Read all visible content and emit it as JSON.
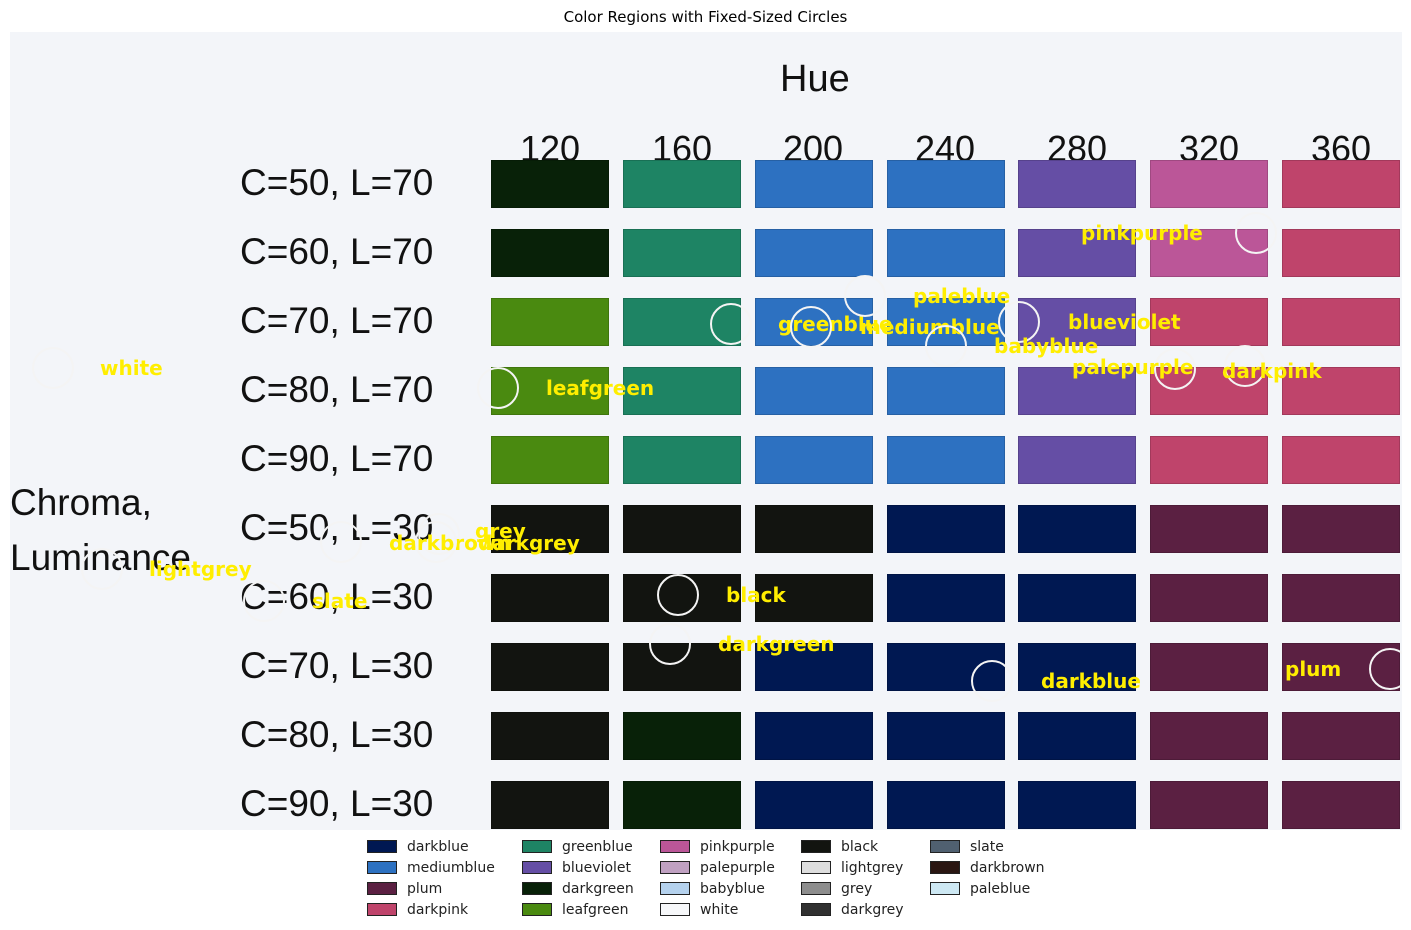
{
  "figure": {
    "title": "Color Regions with Fixed-Sized Circles"
  },
  "image_text": {
    "hue_title": "Hue",
    "hue_labels": [
      "120",
      "160",
      "200",
      "240",
      "280",
      "320",
      "360"
    ],
    "row_labels": [
      "C=50, L=70",
      "C=60, L=70",
      "C=70, L=70",
      "C=80, L=70",
      "C=90, L=70",
      "C=50, L=30",
      "C=60, L=30",
      "C=70, L=30",
      "C=80, L=30",
      "C=90, L=30"
    ],
    "axis_title_line1": "Chroma,",
    "axis_title_line2": "Luminance"
  },
  "swatch_grid": [
    [
      "#082108",
      "#1e8464",
      "#2d71c1",
      "#2d71c1",
      "#654ea5",
      "#bb5698",
      "#bf446b"
    ],
    [
      "#082108",
      "#1e8464",
      "#2d71c1",
      "#2d71c1",
      "#654ea5",
      "#bb5698",
      "#bf446b"
    ],
    [
      "#4a8a10",
      "#1e8464",
      "#2d71c1",
      "#2d71c1",
      "#654ea5",
      "#bf446b",
      "#bf446b"
    ],
    [
      "#4a8a10",
      "#1e8464",
      "#2d71c1",
      "#2d71c1",
      "#654ea5",
      "#bf446b",
      "#bf446b"
    ],
    [
      "#4a8a10",
      "#1e8464",
      "#2d71c1",
      "#2d71c1",
      "#654ea5",
      "#bf446b",
      "#bf446b"
    ],
    [
      "#121410",
      "#121410",
      "#121410",
      "#001852",
      "#001852",
      "#5b2042",
      "#5b2042"
    ],
    [
      "#121410",
      "#121410",
      "#121410",
      "#001852",
      "#001852",
      "#5b2042",
      "#5b2042"
    ],
    [
      "#121410",
      "#121410",
      "#001852",
      "#001852",
      "#001852",
      "#5b2042",
      "#5b2042"
    ],
    [
      "#121410",
      "#082108",
      "#001852",
      "#001852",
      "#001852",
      "#5b2042",
      "#5b2042"
    ],
    [
      "#121410",
      "#082108",
      "#001852",
      "#001852",
      "#001852",
      "#5b2042",
      "#5b2042"
    ]
  ],
  "annotations": [
    {
      "label": "white"
    },
    {
      "label": "leafgreen"
    },
    {
      "label": "greenblue"
    },
    {
      "label": "paleblue"
    },
    {
      "label": "mediumblue"
    },
    {
      "label": "blueviolet"
    },
    {
      "label": "babyblue"
    },
    {
      "label": "pinkpurple"
    },
    {
      "label": "palepurple"
    },
    {
      "label": "darkpink"
    },
    {
      "label": "grey"
    },
    {
      "label": "darkbrown"
    },
    {
      "label": "darkgrey"
    },
    {
      "label": "lightgrey"
    },
    {
      "label": "slate"
    },
    {
      "label": "black"
    },
    {
      "label": "darkgreen"
    },
    {
      "label": "darkblue"
    },
    {
      "label": "plum"
    }
  ],
  "legend": {
    "items": [
      {
        "label": "darkblue",
        "color": "#001852"
      },
      {
        "label": "mediumblue",
        "color": "#2d71c1"
      },
      {
        "label": "plum",
        "color": "#5b2042"
      },
      {
        "label": "darkpink",
        "color": "#bf446b"
      },
      {
        "label": "greenblue",
        "color": "#1e8464"
      },
      {
        "label": "blueviolet",
        "color": "#654ea5"
      },
      {
        "label": "darkgreen",
        "color": "#082108"
      },
      {
        "label": "leafgreen",
        "color": "#4a8a10"
      },
      {
        "label": "pinkpurple",
        "color": "#bb5698"
      },
      {
        "label": "palepurple",
        "color": "#c0a1c2"
      },
      {
        "label": "babyblue",
        "color": "#b5d2ee"
      },
      {
        "label": "white",
        "color": "#f7f8fa"
      },
      {
        "label": "black",
        "color": "#121410"
      },
      {
        "label": "lightgrey",
        "color": "#dedede"
      },
      {
        "label": "grey",
        "color": "#8d8d8d"
      },
      {
        "label": "darkgrey",
        "color": "#303030"
      },
      {
        "label": "slate",
        "color": "#506070"
      },
      {
        "label": "darkbrown",
        "color": "#2a1612"
      },
      {
        "label": "paleblue",
        "color": "#cde8f3"
      }
    ]
  }
}
